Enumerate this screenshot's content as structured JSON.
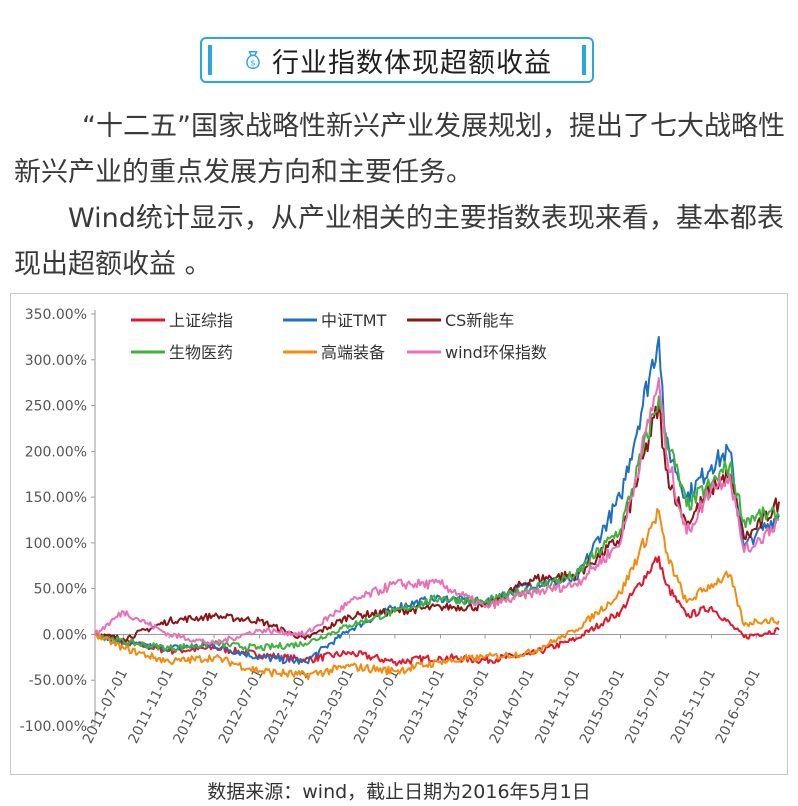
{
  "header": {
    "title": "行业指数体现超额收益",
    "icon": "money-bag-icon",
    "accent_color": "#29a8e0"
  },
  "body": {
    "paragraph1": "“十二五”国家战略性新兴产业发展规划，提出了七大战略性新兴产业的重点发展方向和主要任务。",
    "paragraph2": "Wind统计显示，从产业相关的主要指数表现来看，基本都表现出超额收益 。"
  },
  "source_note": "数据来源：wind，截止日期为2016年5月1日",
  "chart_data": {
    "type": "line",
    "title": "",
    "xlabel": "",
    "ylabel": "",
    "ylim": [
      -100,
      350
    ],
    "x_range": [
      "2011-04-15",
      "2016-05-01"
    ],
    "y_ticks": [
      "-100.00%",
      "-50.00%",
      "0.00%",
      "50.00%",
      "100.00%",
      "150.00%",
      "200.00%",
      "250.00%",
      "300.00%",
      "350.00%"
    ],
    "x_ticks": [
      "2011-07-01",
      "2011-11-01",
      "2012-03-01",
      "2012-07-01",
      "2012-11-01",
      "2013-03-01",
      "2013-07-01",
      "2013-11-01",
      "2014-03-01",
      "2014-07-01",
      "2014-11-01",
      "2015-03-01",
      "2015-07-01",
      "2015-11-01",
      "2016-03-01"
    ],
    "legend_position": "top",
    "grid": false,
    "series": [
      {
        "name": "上证综指",
        "color": "#e3162b",
        "x": [
          "2011-04-15",
          "2011-07-01",
          "2011-11-01",
          "2012-03-01",
          "2012-07-01",
          "2012-11-01",
          "2013-03-01",
          "2013-07-01",
          "2013-11-01",
          "2014-03-01",
          "2014-07-01",
          "2014-11-01",
          "2015-03-01",
          "2015-06-12",
          "2015-07-01",
          "2015-08-26",
          "2015-11-01",
          "2016-01-28",
          "2016-03-01",
          "2016-05-01"
        ],
        "values": [
          0,
          -8,
          -18,
          -15,
          -22,
          -28,
          -20,
          -30,
          -25,
          -28,
          -22,
          -5,
          25,
          85,
          55,
          20,
          30,
          -3,
          0,
          5
        ]
      },
      {
        "name": "中证TMT",
        "color": "#1f6fbf",
        "x": [
          "2011-04-15",
          "2011-07-01",
          "2011-11-01",
          "2012-03-01",
          "2012-07-01",
          "2012-11-01",
          "2013-03-01",
          "2013-07-01",
          "2013-11-01",
          "2014-03-01",
          "2014-07-01",
          "2014-11-01",
          "2015-03-01",
          "2015-06-12",
          "2015-07-01",
          "2015-08-26",
          "2015-11-01",
          "2015-12-20",
          "2016-01-28",
          "2016-03-01",
          "2016-05-01"
        ],
        "values": [
          0,
          -10,
          -15,
          -12,
          -25,
          -30,
          5,
          30,
          40,
          35,
          55,
          60,
          150,
          325,
          210,
          150,
          185,
          200,
          95,
          110,
          130
        ]
      },
      {
        "name": "CS新能车",
        "color": "#8b1414",
        "x": [
          "2011-04-15",
          "2011-07-01",
          "2011-11-01",
          "2012-03-01",
          "2012-07-01",
          "2012-11-01",
          "2013-03-01",
          "2013-07-01",
          "2013-11-01",
          "2014-03-01",
          "2014-07-01",
          "2014-11-01",
          "2015-03-01",
          "2015-06-12",
          "2015-07-01",
          "2015-08-26",
          "2015-11-01",
          "2015-12-20",
          "2016-01-28",
          "2016-03-01",
          "2016-05-01"
        ],
        "values": [
          0,
          -5,
          15,
          20,
          15,
          -5,
          20,
          25,
          30,
          30,
          60,
          65,
          105,
          250,
          180,
          120,
          160,
          175,
          105,
          115,
          145
        ]
      },
      {
        "name": "生物医药",
        "color": "#3fb13f",
        "x": [
          "2011-04-15",
          "2011-07-01",
          "2011-11-01",
          "2012-03-01",
          "2012-07-01",
          "2012-11-01",
          "2013-03-01",
          "2013-07-01",
          "2013-11-01",
          "2014-03-01",
          "2014-07-01",
          "2014-11-01",
          "2015-03-01",
          "2015-06-12",
          "2015-07-01",
          "2015-08-26",
          "2015-11-01",
          "2015-12-20",
          "2016-01-28",
          "2016-03-01",
          "2016-05-01"
        ],
        "values": [
          0,
          -8,
          -15,
          -10,
          -15,
          -10,
          10,
          25,
          40,
          35,
          50,
          65,
          115,
          260,
          220,
          140,
          165,
          185,
          125,
          130,
          130
        ]
      },
      {
        "name": "高端装备",
        "color": "#f28c0f",
        "x": [
          "2011-04-15",
          "2011-07-01",
          "2011-11-01",
          "2012-03-01",
          "2012-07-01",
          "2012-11-01",
          "2013-03-01",
          "2013-07-01",
          "2013-11-01",
          "2014-03-01",
          "2014-07-01",
          "2014-11-01",
          "2015-03-01",
          "2015-06-12",
          "2015-07-01",
          "2015-08-26",
          "2015-11-01",
          "2015-12-20",
          "2016-01-28",
          "2016-03-01",
          "2016-05-01"
        ],
        "values": [
          0,
          -15,
          -30,
          -25,
          -40,
          -45,
          -35,
          -40,
          -30,
          -25,
          -20,
          5,
          45,
          135,
          90,
          35,
          55,
          65,
          10,
          15,
          15
        ]
      },
      {
        "name": "wind环保指数",
        "color": "#ea6fb4",
        "x": [
          "2011-04-15",
          "2011-07-01",
          "2011-11-01",
          "2012-03-01",
          "2012-07-01",
          "2012-11-01",
          "2013-03-01",
          "2013-07-01",
          "2013-11-01",
          "2014-03-01",
          "2014-07-01",
          "2014-11-01",
          "2015-03-01",
          "2015-06-12",
          "2015-07-01",
          "2015-08-26",
          "2015-11-01",
          "2015-12-20",
          "2016-01-28",
          "2016-03-01",
          "2016-05-01"
        ],
        "values": [
          0,
          25,
          0,
          -10,
          5,
          0,
          35,
          55,
          55,
          30,
          45,
          55,
          100,
          280,
          200,
          110,
          160,
          175,
          90,
          100,
          125
        ]
      }
    ]
  }
}
